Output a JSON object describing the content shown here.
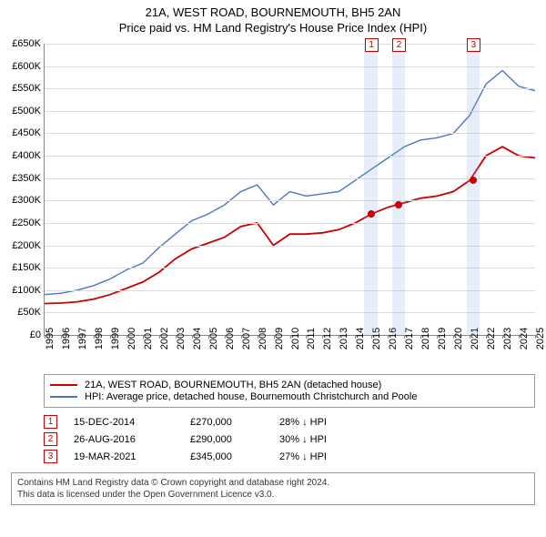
{
  "title_line1": "21A, WEST ROAD, BOURNEMOUTH, BH5 2AN",
  "title_line2": "Price paid vs. HM Land Registry's House Price Index (HPI)",
  "chart": {
    "type": "line",
    "ylim": [
      0,
      650000
    ],
    "ytick_step": 50000,
    "ylabels": [
      "£0",
      "£50K",
      "£100K",
      "£150K",
      "£200K",
      "£250K",
      "£300K",
      "£350K",
      "£400K",
      "£450K",
      "£500K",
      "£550K",
      "£600K",
      "£650K"
    ],
    "x_years": [
      1995,
      1996,
      1997,
      1998,
      1999,
      2000,
      2001,
      2002,
      2003,
      2004,
      2005,
      2006,
      2007,
      2008,
      2009,
      2010,
      2011,
      2012,
      2013,
      2014,
      2015,
      2016,
      2017,
      2018,
      2019,
      2020,
      2021,
      2022,
      2023,
      2024,
      2025
    ],
    "background_color": "#ffffff",
    "grid_color": "#dcdcdc",
    "series": {
      "price_paid": {
        "color": "#cc0000",
        "width": 1.8,
        "label": "21A, WEST ROAD, BOURNEMOUTH, BH5 2AN (detached house)",
        "points": [
          [
            1995,
            70000
          ],
          [
            1996,
            71000
          ],
          [
            1997,
            74000
          ],
          [
            1998,
            80000
          ],
          [
            1999,
            90000
          ],
          [
            2000,
            104000
          ],
          [
            2001,
            118000
          ],
          [
            2002,
            140000
          ],
          [
            2003,
            170000
          ],
          [
            2004,
            192000
          ],
          [
            2005,
            205000
          ],
          [
            2006,
            218000
          ],
          [
            2007,
            242000
          ],
          [
            2008,
            250000
          ],
          [
            2009,
            200000
          ],
          [
            2010,
            225000
          ],
          [
            2011,
            225000
          ],
          [
            2012,
            228000
          ],
          [
            2013,
            235000
          ],
          [
            2014,
            250000
          ],
          [
            2015,
            270000
          ],
          [
            2016,
            285000
          ],
          [
            2017,
            295000
          ],
          [
            2018,
            305000
          ],
          [
            2019,
            310000
          ],
          [
            2020,
            320000
          ],
          [
            2021,
            345000
          ],
          [
            2022,
            400000
          ],
          [
            2023,
            420000
          ],
          [
            2024,
            400000
          ],
          [
            2025,
            395000
          ]
        ]
      },
      "hpi": {
        "color": "#4a74c9",
        "width": 1.4,
        "label": "HPI: Average price, detached house, Bournemouth Christchurch and Poole",
        "points": [
          [
            1995,
            90000
          ],
          [
            1996,
            93000
          ],
          [
            1997,
            100000
          ],
          [
            1998,
            110000
          ],
          [
            1999,
            125000
          ],
          [
            2000,
            145000
          ],
          [
            2001,
            160000
          ],
          [
            2002,
            195000
          ],
          [
            2003,
            225000
          ],
          [
            2004,
            255000
          ],
          [
            2005,
            270000
          ],
          [
            2006,
            290000
          ],
          [
            2007,
            320000
          ],
          [
            2008,
            335000
          ],
          [
            2009,
            290000
          ],
          [
            2010,
            320000
          ],
          [
            2011,
            310000
          ],
          [
            2012,
            315000
          ],
          [
            2013,
            320000
          ],
          [
            2014,
            345000
          ],
          [
            2015,
            370000
          ],
          [
            2016,
            395000
          ],
          [
            2017,
            420000
          ],
          [
            2018,
            435000
          ],
          [
            2019,
            440000
          ],
          [
            2020,
            450000
          ],
          [
            2021,
            490000
          ],
          [
            2022,
            560000
          ],
          [
            2023,
            590000
          ],
          [
            2024,
            555000
          ],
          [
            2025,
            545000
          ]
        ]
      }
    },
    "transactions": [
      {
        "num": "1",
        "year": 2014.96,
        "price": 270000,
        "date": "15-DEC-2014",
        "price_label": "£270,000",
        "diff": "28% ↓ HPI"
      },
      {
        "num": "2",
        "year": 2016.65,
        "price": 290000,
        "date": "26-AUG-2016",
        "price_label": "£290,000",
        "diff": "30% ↓ HPI"
      },
      {
        "num": "3",
        "year": 2021.21,
        "price": 345000,
        "date": "19-MAR-2021",
        "price_label": "£345,000",
        "diff": "27% ↓ HPI"
      }
    ],
    "shade_half_width_years": 0.4
  },
  "legend": {
    "row1_color": "#cc0000",
    "row2_color": "#4a74c9"
  },
  "footer": {
    "line1": "Contains HM Land Registry data © Crown copyright and database right 2024.",
    "line2": "This data is licensed under the Open Government Licence v3.0."
  }
}
